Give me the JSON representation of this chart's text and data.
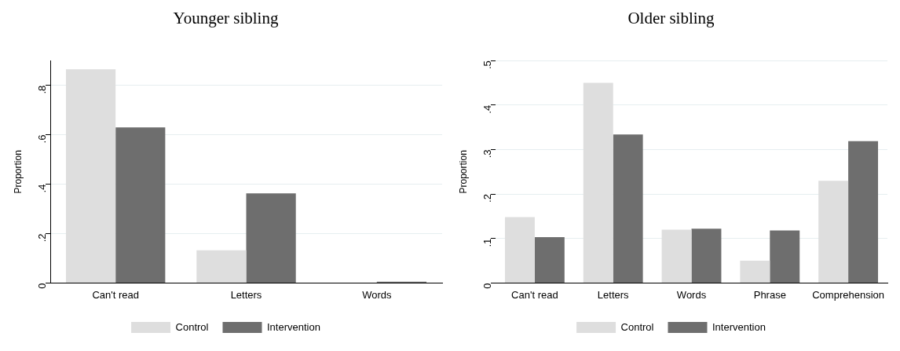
{
  "chart_data": [
    {
      "type": "bar",
      "title": "Younger sibling",
      "ylabel": "Proportion",
      "categories": [
        "Can't read",
        "Letters",
        "Words"
      ],
      "series": [
        {
          "name": "Control",
          "color": "#dedede",
          "values": [
            0.865,
            0.132,
            0
          ]
        },
        {
          "name": "Intervention",
          "color": "#6e6e6e",
          "values": [
            0.63,
            0.363,
            0.005
          ]
        }
      ],
      "ylim": [
        0,
        0.9
      ],
      "yticks": [
        0,
        {
          "value": 0.2,
          "label": ".2"
        },
        {
          "value": 0.4,
          "label": ".4"
        },
        {
          "value": 0.6,
          "label": ".6"
        },
        {
          "value": 0.8,
          "label": ".8"
        }
      ],
      "grid": "y",
      "legend": "bottom"
    },
    {
      "type": "bar",
      "title": "Older sibling",
      "ylabel": "Proportion",
      "categories": [
        "Can't read",
        "Letters",
        "Words",
        "Phrase",
        "Comprehension"
      ],
      "series": [
        {
          "name": "Control",
          "color": "#dedede",
          "values": [
            0.148,
            0.45,
            0.12,
            0.05,
            0.23
          ]
        },
        {
          "name": "Intervention",
          "color": "#6e6e6e",
          "values": [
            0.103,
            0.334,
            0.122,
            0.118,
            0.319
          ]
        }
      ],
      "ylim": [
        0,
        0.5
      ],
      "yticks": [
        0,
        {
          "value": 0.1,
          "label": ".1"
        },
        {
          "value": 0.2,
          "label": ".2"
        },
        {
          "value": 0.3,
          "label": ".3"
        },
        {
          "value": 0.4,
          "label": ".4"
        },
        {
          "value": 0.5,
          "label": ".5"
        }
      ],
      "grid": "y",
      "legend": "bottom"
    }
  ]
}
